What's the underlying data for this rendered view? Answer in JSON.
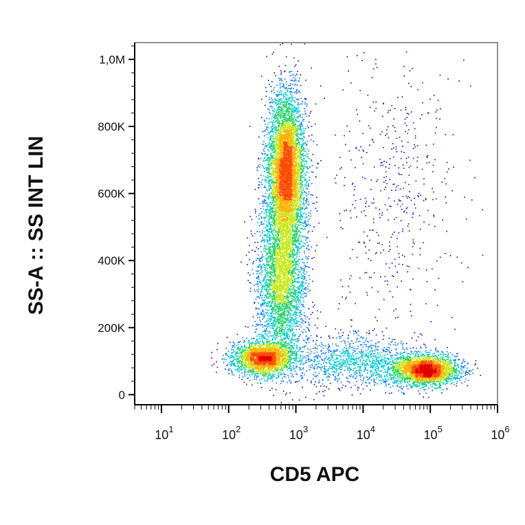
{
  "chart_data": {
    "type": "scatter",
    "style": "flow-cytometry density dot plot",
    "xlabel": "CD5 APC",
    "ylabel": "SS-A :: SS INT LIN",
    "x_scale": "log",
    "xlim": [
      4,
      1000000
    ],
    "ylim": [
      -30000,
      1050000
    ],
    "x_ticks": [
      {
        "value": 10,
        "base": "10",
        "exp": "1"
      },
      {
        "value": 100,
        "base": "10",
        "exp": "2"
      },
      {
        "value": 1000,
        "base": "10",
        "exp": "3"
      },
      {
        "value": 10000,
        "base": "10",
        "exp": "4"
      },
      {
        "value": 100000,
        "base": "10",
        "exp": "5"
      },
      {
        "value": 1000000,
        "base": "10",
        "exp": "6"
      }
    ],
    "y_ticks": [
      {
        "value": 0,
        "label": "0"
      },
      {
        "value": 200000,
        "label": "200K"
      },
      {
        "value": 400000,
        "label": "400K"
      },
      {
        "value": 600000,
        "label": "600K"
      },
      {
        "value": 800000,
        "label": "800K"
      },
      {
        "value": 1000000,
        "label": "1,0M"
      }
    ],
    "grid": false,
    "density_colors": [
      "#1c1cc8",
      "#0a7cff",
      "#00c8d8",
      "#22d46a",
      "#c8e81a",
      "#ffb000",
      "#ff4a00",
      "#e00000"
    ],
    "populations": [
      {
        "x_center": 700,
        "y_center": 660000,
        "x_spread_decades": 0.14,
        "y_spread": 120000,
        "relative_count": 0.36
      },
      {
        "x_center": 600,
        "y_center": 330000,
        "x_spread_decades": 0.18,
        "y_spread": 120000,
        "relative_count": 0.2
      },
      {
        "x_center": 320,
        "y_center": 110000,
        "x_spread_decades": 0.22,
        "y_spread": 25000,
        "relative_count": 0.14
      },
      {
        "x_center": 85000,
        "y_center": 75000,
        "x_spread_decades": 0.25,
        "y_spread": 22000,
        "relative_count": 0.16
      },
      {
        "x_center": 30000,
        "y_center": 600000,
        "x_spread_decades": 0.45,
        "y_spread": 220000,
        "relative_count": 0.03
      },
      {
        "x_center": 8000,
        "y_center": 100000,
        "x_spread_decades": 0.5,
        "y_spread": 40000,
        "relative_count": 0.07
      }
    ]
  }
}
